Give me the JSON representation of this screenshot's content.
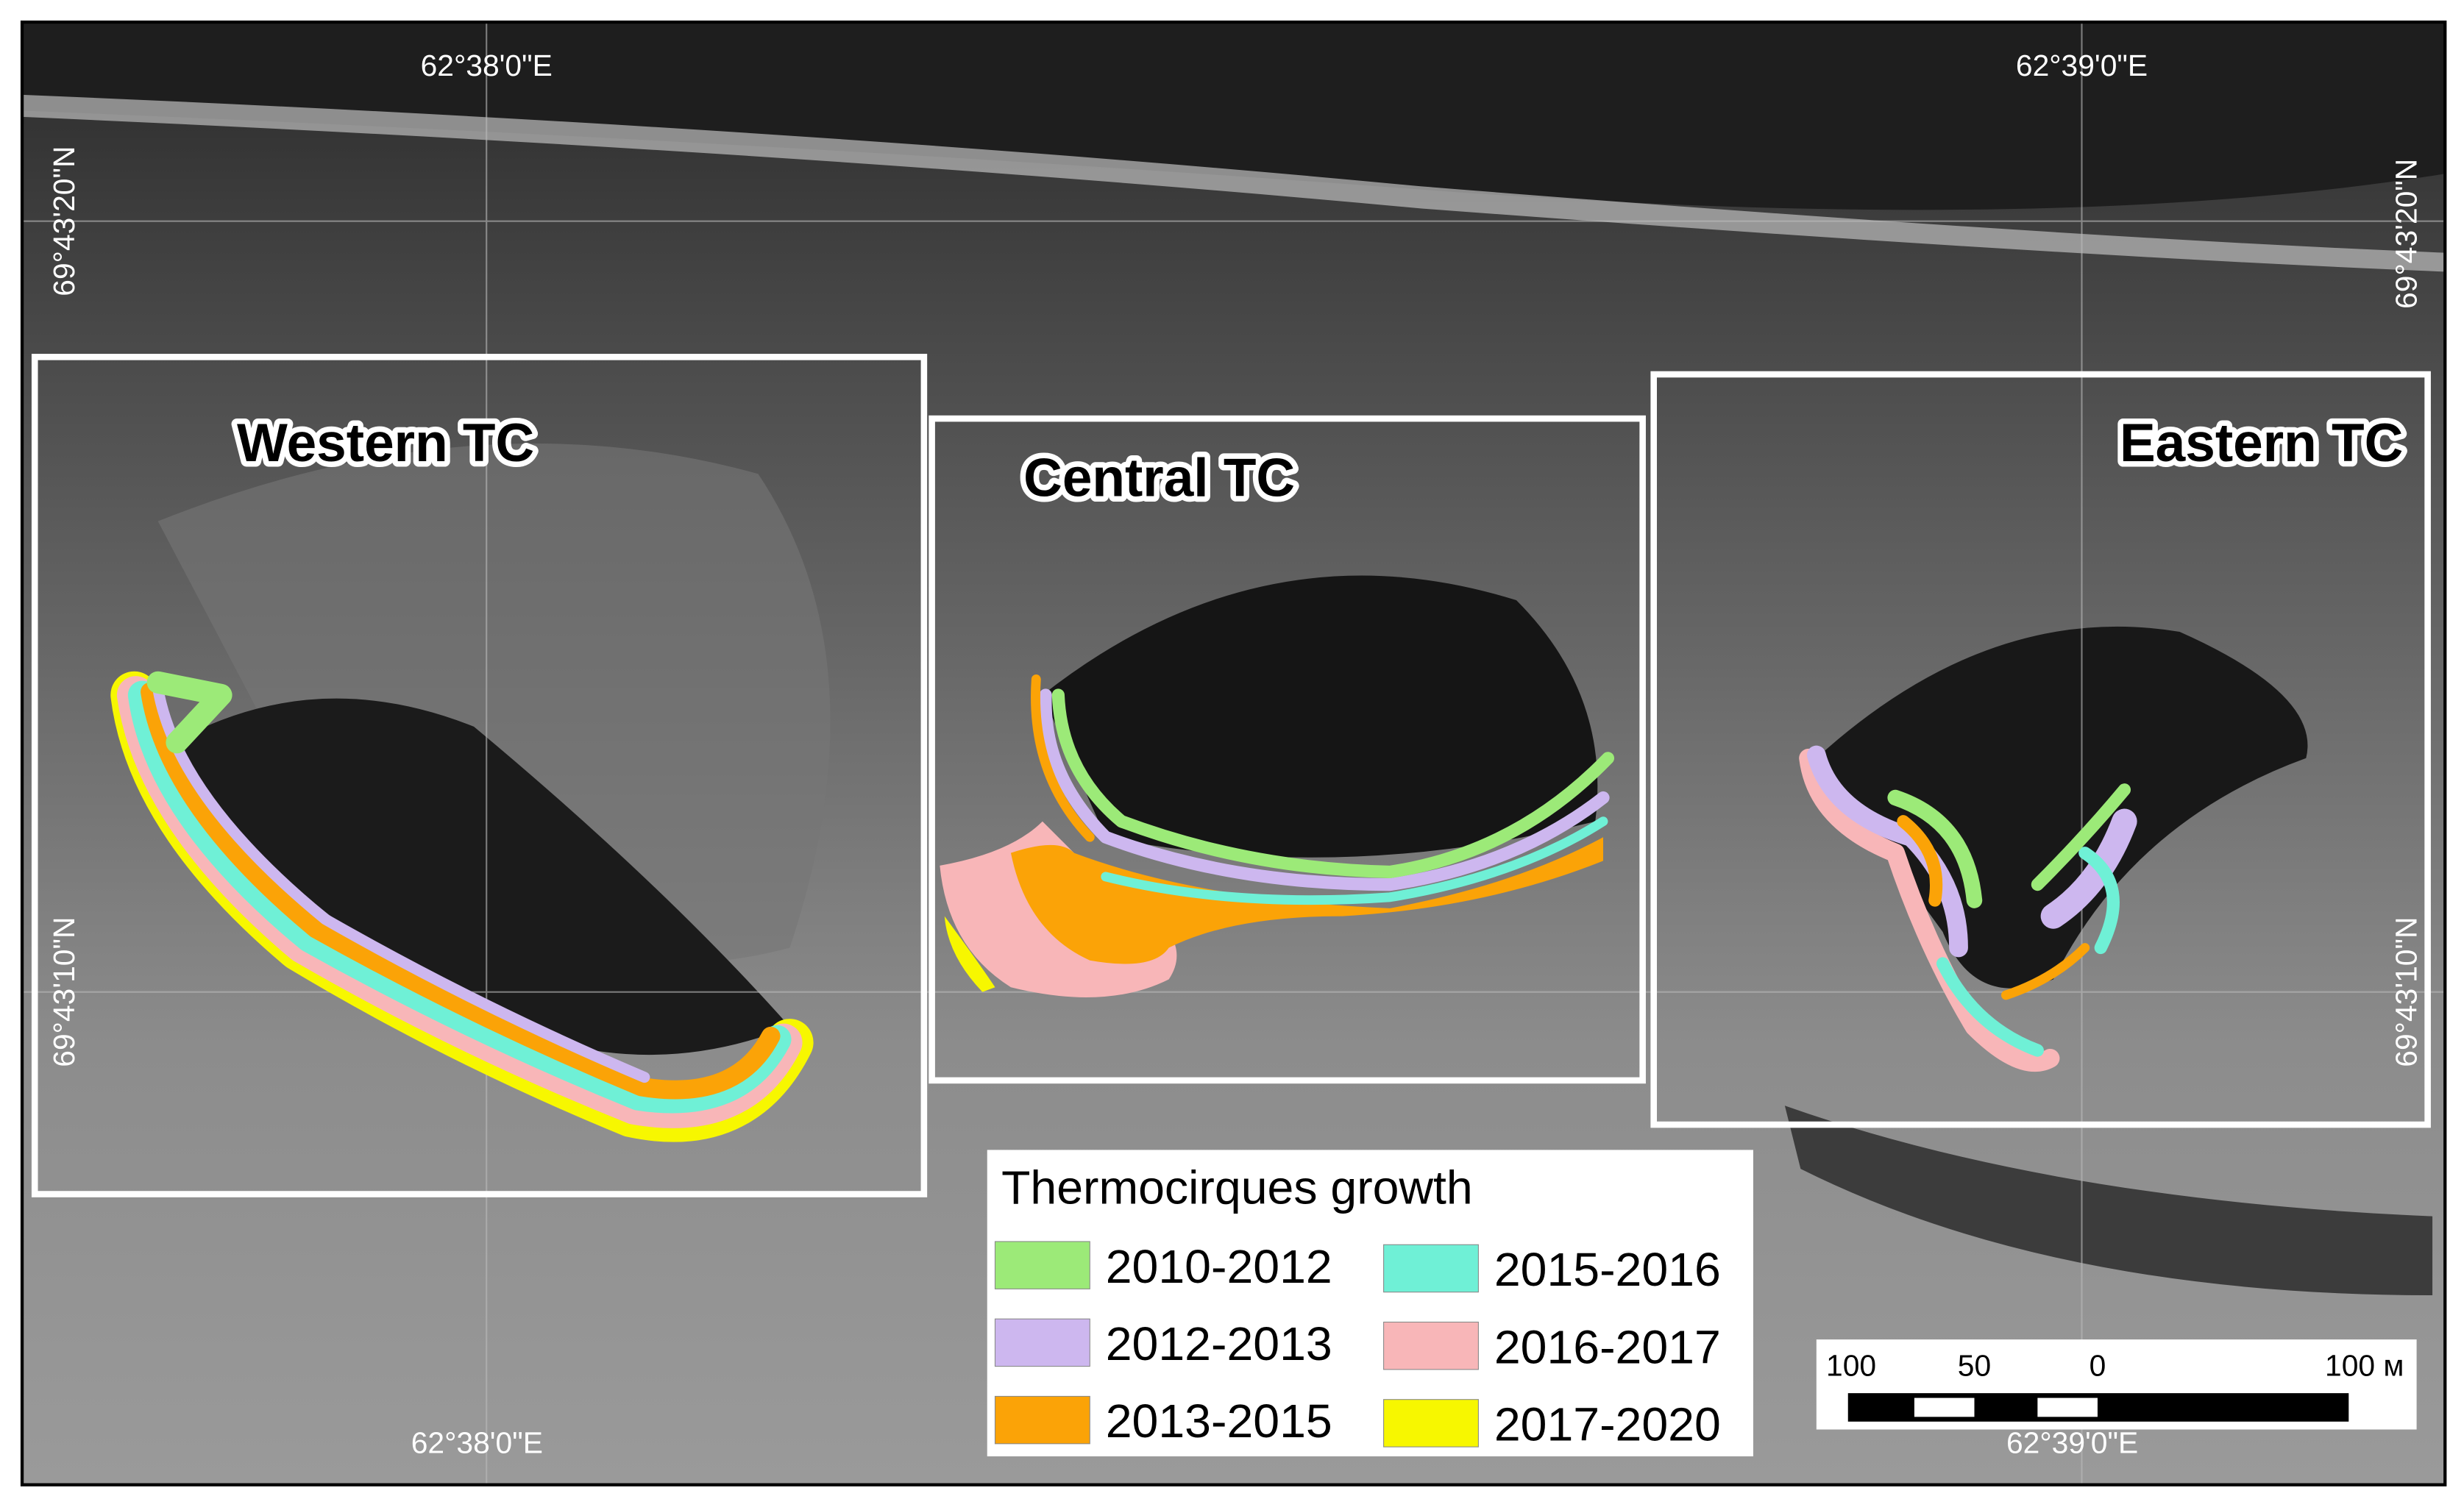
{
  "graticule": {
    "top": [
      "62°38'0\"E",
      "62°39'0\"E"
    ],
    "bottom": [
      "62°38'0\"E",
      "62°39'0\"E"
    ],
    "left": [
      "69°43'20\"N",
      "69°43'10\"N"
    ],
    "right": [
      "69°43'20\"N",
      "69°43'10\"N"
    ]
  },
  "regions": [
    "Western TC",
    "Central TC",
    "Eastern TC"
  ],
  "legend": {
    "title": "Thermocirques growth",
    "items": [
      {
        "label": "2010-2012",
        "color": "#9cea78"
      },
      {
        "label": "2012-2013",
        "color": "#cdb7ef"
      },
      {
        "label": "2013-2015",
        "color": "#fba307"
      },
      {
        "label": "2015-2016",
        "color": "#6ff0d6"
      },
      {
        "label": "2016-2017",
        "color": "#f8b6b8"
      },
      {
        "label": "2017-2020",
        "color": "#f7f700"
      }
    ]
  },
  "scale_bar": {
    "labels": [
      "100",
      "50",
      "0",
      "100 м"
    ]
  }
}
